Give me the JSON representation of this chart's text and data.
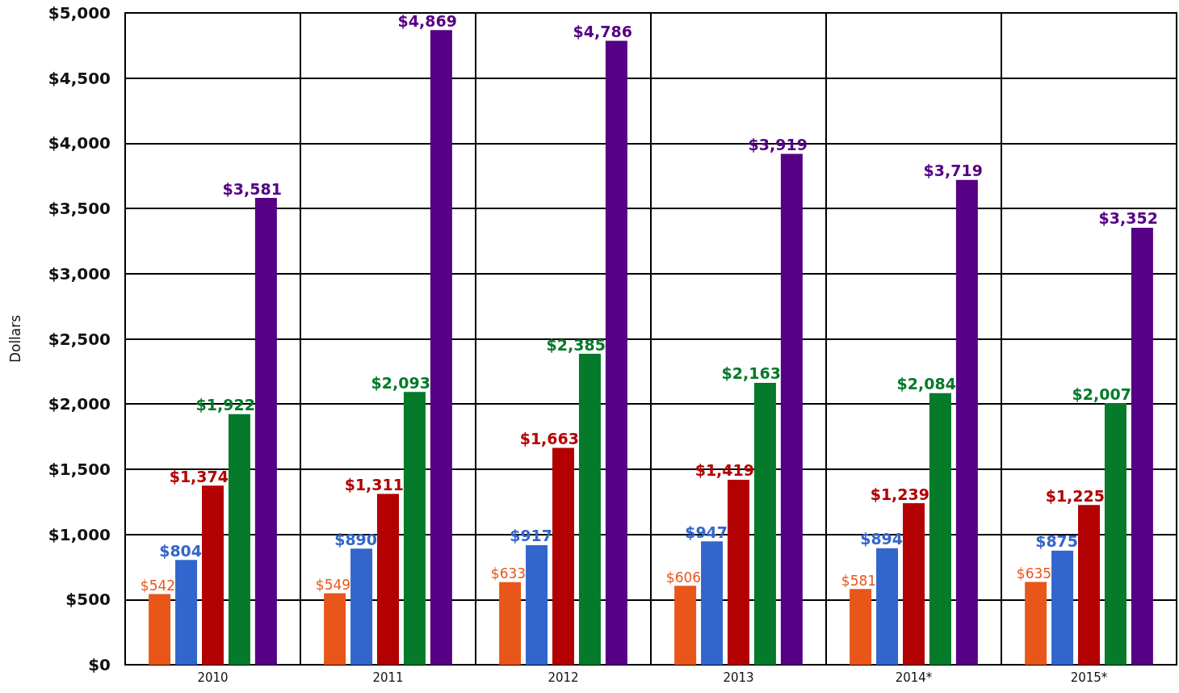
{
  "chart_data": {
    "type": "bar",
    "ylabel": "Dollars",
    "categories": [
      "2010",
      "2011",
      "2012",
      "2013",
      "2014*",
      "2015*"
    ],
    "series": [
      {
        "color": "#e8561a",
        "values": [
          542,
          549,
          633,
          606,
          581,
          635
        ],
        "value_labels": [
          "$542",
          "$549",
          "$633",
          "$606",
          "$581",
          "$635"
        ]
      },
      {
        "color": "#3366cc",
        "values": [
          804,
          890,
          917,
          947,
          894,
          875
        ],
        "value_labels": [
          "$804",
          "$890",
          "$917",
          "$947",
          "$894",
          "$875"
        ]
      },
      {
        "color": "#b30000",
        "values": [
          1374,
          1311,
          1663,
          1419,
          1239,
          1225
        ],
        "value_labels": [
          "$1,374",
          "$1,311",
          "$1,663",
          "$1,419",
          "$1,239",
          "$1,225"
        ]
      },
      {
        "color": "#057a2a",
        "values": [
          1922,
          2093,
          2385,
          2163,
          2084,
          2007
        ],
        "value_labels": [
          "$1,922",
          "$2,093",
          "$2,385",
          "$2,163",
          "$2,084",
          "$2,007"
        ]
      },
      {
        "color": "#560085",
        "values": [
          3581,
          4869,
          4786,
          3919,
          3719,
          3352
        ],
        "value_labels": [
          "$3,581",
          "$4,869",
          "$4,786",
          "$3,919",
          "$3,719",
          "$3,352"
        ]
      }
    ],
    "ylim": [
      0,
      5000
    ],
    "yticks": [
      {
        "value": 0,
        "label": "$0"
      },
      {
        "value": 500,
        "label": "$500"
      },
      {
        "value": 1000,
        "label": "$1,000"
      },
      {
        "value": 1500,
        "label": "$1,500"
      },
      {
        "value": 2000,
        "label": "$2,000"
      },
      {
        "value": 2500,
        "label": "$2,500"
      },
      {
        "value": 3000,
        "label": "$3,000"
      },
      {
        "value": 3500,
        "label": "$3,500"
      },
      {
        "value": 4000,
        "label": "$4,000"
      },
      {
        "value": 4500,
        "label": "$4,500"
      },
      {
        "value": 5000,
        "label": "$5,000"
      }
    ],
    "grid": true
  }
}
